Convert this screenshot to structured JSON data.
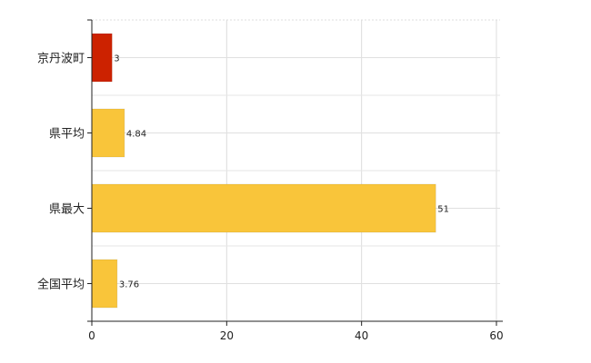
{
  "chart_data": {
    "type": "bar",
    "orientation": "horizontal",
    "categories": [
      "京丹波町",
      "県平均",
      "県最大",
      "全国平均"
    ],
    "values": [
      3,
      4.84,
      51,
      3.76
    ],
    "data_labels": [
      "3",
      "4.84",
      "51",
      "3.76"
    ],
    "bar_colors": [
      "#cc2200",
      "#f9c53a",
      "#f9c53a",
      "#f9c53a"
    ],
    "xlim": [
      0,
      60
    ],
    "xticks": [
      0,
      20,
      40,
      60
    ],
    "xtick_labels": [
      "0",
      "20",
      "40",
      "60"
    ],
    "grid": true,
    "legend": "none"
  }
}
